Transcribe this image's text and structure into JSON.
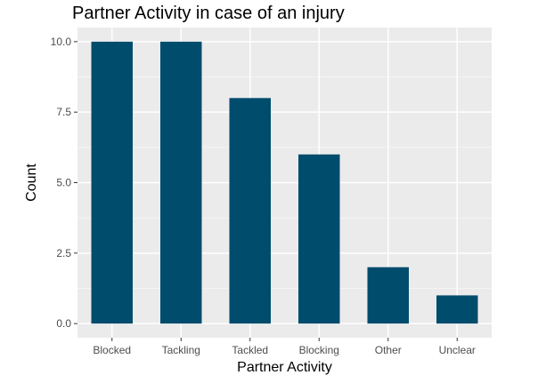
{
  "chart_data": {
    "type": "bar",
    "title": "Partner Activity in case of an injury",
    "xlabel": "Partner Activity",
    "ylabel": "Count",
    "categories": [
      "Blocked",
      "Tackling",
      "Tackled",
      "Blocking",
      "Other",
      "Unclear"
    ],
    "values": [
      10,
      10,
      8,
      6,
      2,
      1
    ],
    "ylim": [
      -0.5,
      10.5
    ],
    "yticks": [
      0,
      2.5,
      5,
      7.5,
      10
    ],
    "ytick_labels": [
      "0.0",
      "2.5",
      "5.0",
      "7.5",
      "10.0"
    ],
    "grid": true,
    "legend": "none",
    "colors": {
      "bar": "#004c6d",
      "panel_background": "#ebebeb",
      "grid_major": "#ffffff",
      "grid_minor": "#f5f5f5"
    }
  }
}
